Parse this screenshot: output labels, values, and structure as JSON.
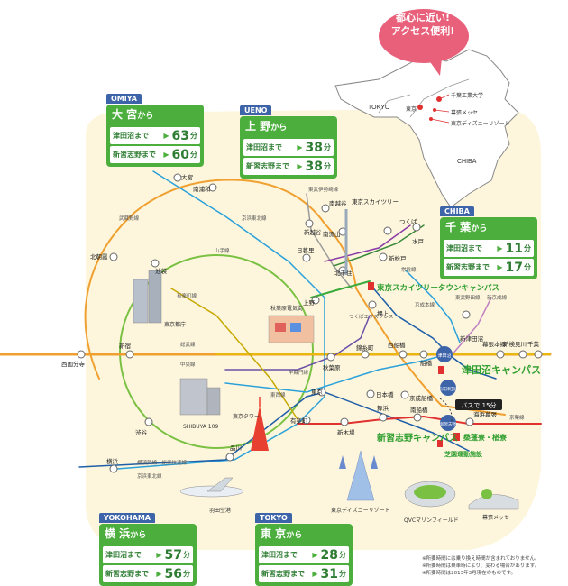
{
  "bubble": {
    "line1": "都心に近い!",
    "line2": "アクセス便利!"
  },
  "inset": {
    "labels": {
      "tokyo": "TOKYO",
      "tokyo_station": "東京",
      "chiba": "CHIBA",
      "cit": "千葉工業大学",
      "makuhari": "幕張メッセ",
      "disney": "東京ディズニーリゾート"
    }
  },
  "boxes": {
    "omiya": {
      "en": "OMIYA",
      "title": "大 宮",
      "kara": "から",
      "rows": [
        {
          "dest": "津田沼まで",
          "time": "63",
          "unit": "分"
        },
        {
          "dest": "新習志野まで",
          "time": "60",
          "unit": "分"
        }
      ]
    },
    "ueno": {
      "en": "UENO",
      "title": "上 野",
      "kara": "から",
      "rows": [
        {
          "dest": "津田沼まで",
          "time": "38",
          "unit": "分"
        },
        {
          "dest": "新習志野まで",
          "time": "38",
          "unit": "分"
        }
      ]
    },
    "chiba": {
      "en": "CHIBA",
      "title": "千 葉",
      "kara": "から",
      "rows": [
        {
          "dest": "津田沼まで",
          "time": "11",
          "unit": "分"
        },
        {
          "dest": "新習志野まで",
          "time": "17",
          "unit": "分"
        }
      ]
    },
    "yokohama": {
      "en": "YOKOHAMA",
      "title": "横 浜",
      "kara": "から",
      "rows": [
        {
          "dest": "津田沼まで",
          "time": "57",
          "unit": "分"
        },
        {
          "dest": "新習志野まで",
          "time": "56",
          "unit": "分"
        }
      ]
    },
    "tokyo": {
      "en": "TOKYO",
      "title": "東 京",
      "kara": "から",
      "rows": [
        {
          "dest": "津田沼まで",
          "time": "28",
          "unit": "分"
        },
        {
          "dest": "新習志野まで",
          "time": "31",
          "unit": "分"
        }
      ]
    }
  },
  "stations": {
    "omiya": "大宮",
    "minamiurawa": "南浦和",
    "kitaasaka": "北朝霞",
    "ikebukuro": "池袋",
    "shinjuku": "新宿",
    "nishikokubunji": "西国分寺",
    "shibuya": "渋谷",
    "shinagawa": "品川",
    "yokohama": "横浜",
    "nippori": "日暮里",
    "ueno": "上野",
    "akihabara": "秋葉原",
    "tokyo": "東京",
    "yurakucho": "有楽町",
    "kinshicho": "錦糸町",
    "nishifunabashi": "西船橋",
    "funabashi": "船橋",
    "tsudanuma": "津田沼",
    "keiseitsudanuma": "京成津田沼",
    "shintsudanuma": "新津田沼",
    "makuharihongo": "幕張本郷",
    "shinkemigawa": "新検見川",
    "chiba": "千葉",
    "shinkoshigaya": "新越谷",
    "minamiurawa2": "南越谷",
    "skytree": "東京スカイツリー",
    "minamiryu": "南流山",
    "tsukuba": "つくば",
    "mito": "水戸",
    "shinmatsudo": "新松戸",
    "kitasenju": "北千住",
    "oshiage": "押上",
    "nihonbashi": "日本橋",
    "keiseifunabashi": "京成船橋",
    "shinkiba": "新木場",
    "maihama": "舞浜",
    "minamifunabashi": "南船橋",
    "shinnarashino": "新習志野",
    "kaihinmakuhari": "海浜幕張"
  },
  "lines": {
    "musashino": "武蔵野線",
    "keihintohoku": "京浜東北線",
    "yamanote": "山手線",
    "yurakucho": "有楽町線",
    "sobu": "総武線",
    "chuo": "中央線",
    "hanzomon": "半蔵門線",
    "tozai": "東西線",
    "tobu": "東武伊勢崎線",
    "joban": "常磐線",
    "tsukubaex": "つくばエクスプレス",
    "keisei": "京成本線",
    "tobunoda": "東武野田線",
    "shinkeisei": "新京成線",
    "keiyo": "京葉線",
    "yokosuka": "横須賀線・総武快速線",
    "keihintohoku2": "京浜東北線"
  },
  "landmarks": {
    "tocho": "東京都庁",
    "akihabara_elec": "秋葉原電気街",
    "shibuya109": "SHIBUYA 109",
    "tokyotower": "東京タワー",
    "haneda": "羽田空港",
    "disney": "東京ディズニーリゾート",
    "qvc": "QVCマリンフィールド",
    "makuhari": "幕張メッセ"
  },
  "campuses": {
    "skytree": "東京スカイツリータウンキャンパス",
    "tsudanuma": "津田沼キャンパス",
    "shinnarashino": "新習志野キャンパス",
    "sohoryo": "桑蓬寮・楢寮",
    "sports": "芝園運動施設"
  },
  "bus": {
    "label": "バスで 15分"
  },
  "notes": {
    "n1": "※所要時間には乗り換え時間が含まれておりません。",
    "n2": "※所要時間は乗車時により、変わる場合があります。",
    "n3": "※所要時間は2013年3月現在のものです。"
  },
  "colors": {
    "green": "#4caf3d",
    "blue_tag": "#3d63a8",
    "orange": "#f0a030",
    "red": "#e03030",
    "pink": "#e8607a",
    "purple": "#6a50a8"
  }
}
